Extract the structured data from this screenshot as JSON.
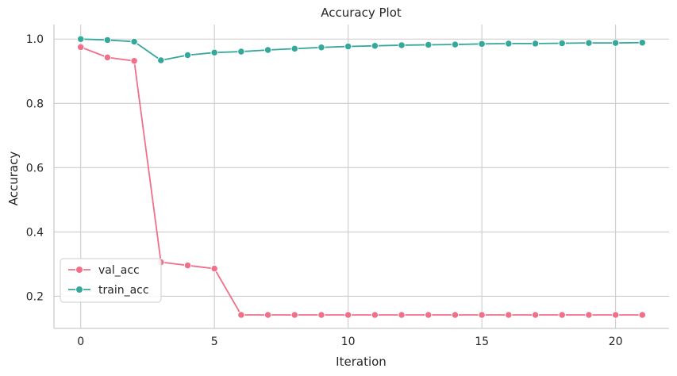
{
  "chart_data": {
    "type": "line",
    "title": "Accuracy Plot",
    "xlabel": "Iteration",
    "ylabel": "Accuracy",
    "xlim": [
      -1,
      22
    ],
    "ylim": [
      0.1,
      1.045
    ],
    "x_ticks": [
      0,
      5,
      10,
      15,
      20
    ],
    "y_ticks": [
      0.2,
      0.4,
      0.6,
      0.8,
      1.0
    ],
    "y_tick_labels": [
      "0.2",
      "0.4",
      "0.6",
      "0.8",
      "1.0"
    ],
    "grid": true,
    "legend_position": "lower-left",
    "x": [
      0,
      1,
      2,
      3,
      4,
      5,
      6,
      7,
      8,
      9,
      10,
      11,
      12,
      13,
      14,
      15,
      16,
      17,
      18,
      19,
      20,
      21
    ],
    "series": [
      {
        "name": "val_acc",
        "color": "#f07089",
        "values": [
          0.975,
          0.943,
          0.932,
          0.306,
          0.296,
          0.286,
          0.142,
          0.142,
          0.142,
          0.142,
          0.142,
          0.142,
          0.142,
          0.142,
          0.142,
          0.142,
          0.142,
          0.142,
          0.142,
          0.142,
          0.142,
          0.142
        ]
      },
      {
        "name": "train_acc",
        "color": "#33a89b",
        "values": [
          1.0,
          0.997,
          0.992,
          0.934,
          0.95,
          0.958,
          0.961,
          0.966,
          0.97,
          0.974,
          0.977,
          0.979,
          0.981,
          0.982,
          0.983,
          0.985,
          0.986,
          0.986,
          0.987,
          0.988,
          0.988,
          0.989
        ]
      }
    ]
  }
}
